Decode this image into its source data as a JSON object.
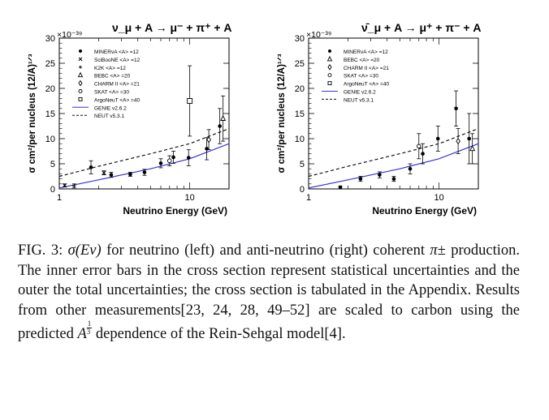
{
  "figure": {
    "exponent_label": "×10⁻³⁹",
    "ylabel": "σ cm²/per nucleus (12/A)¹ᐟ³",
    "xlabel": "Neutrino Energy (GeV)"
  },
  "chart_data": [
    {
      "type": "scatter",
      "panel": "left",
      "title": "ν_μ + A → μ⁻ + π⁺ + A",
      "xlabel": "Neutrino Energy (GeV)",
      "ylabel": "σ cm²/per nucleus (12/A)^1/3",
      "y_multiplier": "×10⁻³⁹",
      "xscale": "log",
      "xlim": [
        1,
        20
      ],
      "ylim": [
        0,
        30
      ],
      "xticks": [
        "1",
        "10"
      ],
      "yticks": [
        "0",
        "5",
        "10",
        "15",
        "20",
        "25",
        "30"
      ],
      "legend_position": "top-left",
      "legend": [
        {
          "label": "MINERvA <A> =12",
          "marker": "filled-circle"
        },
        {
          "label": "SciBooNE <A> =12",
          "marker": "cross"
        },
        {
          "label": "K2K <A> =12",
          "marker": "plus"
        },
        {
          "label": "BEBC <A> =20",
          "marker": "open-triangle"
        },
        {
          "label": "CHARM II <A> =21",
          "marker": "open-diamond"
        },
        {
          "label": "SKAT <A> =30",
          "marker": "open-circle"
        },
        {
          "label": "ArgoNeuT <A> =40",
          "marker": "open-square"
        },
        {
          "label": "GENIE v2.6.2",
          "marker": "line"
        },
        {
          "label": "NEUT v5.3.1",
          "marker": "dashed-line"
        }
      ],
      "series": [
        {
          "name": "MINERvA <A> =12",
          "marker": "filled-circle",
          "points": [
            {
              "x": 1.75,
              "y": 4.3,
              "err": 1.3
            },
            {
              "x": 2.5,
              "y": 2.8,
              "err": 0.5
            },
            {
              "x": 3.5,
              "y": 2.9,
              "err": 0.4
            },
            {
              "x": 4.5,
              "y": 3.3,
              "err": 0.6
            },
            {
              "x": 6.0,
              "y": 5.1,
              "err": 0.9
            },
            {
              "x": 7.5,
              "y": 6.3,
              "err": 1.2
            },
            {
              "x": 9.8,
              "y": 6.2,
              "err": 1.6
            },
            {
              "x": 13.5,
              "y": 8.0,
              "err": 2.2
            },
            {
              "x": 17.0,
              "y": 12.5,
              "err": 3.5
            }
          ]
        },
        {
          "name": "SciBooNE <A> =12",
          "marker": "cross",
          "points": [
            {
              "x": 1.1,
              "y": 0.7,
              "err": 0.3
            },
            {
              "x": 2.2,
              "y": 3.2,
              "err": 0.4
            }
          ]
        },
        {
          "name": "K2K <A> =12",
          "marker": "plus",
          "points": [
            {
              "x": 1.3,
              "y": 0.6,
              "err": 0.4
            }
          ]
        },
        {
          "name": "BEBC <A> =20",
          "marker": "open-triangle",
          "points": [
            {
              "x": 18.0,
              "y": 14.0,
              "err": 4.5
            }
          ]
        },
        {
          "name": "CHARM II <A> =21",
          "marker": "open-diamond",
          "points": [
            {
              "x": 14.0,
              "y": 9.8,
              "err": 2.0
            }
          ]
        },
        {
          "name": "SKAT <A> =30",
          "marker": "open-circle",
          "points": [
            {
              "x": 7.0,
              "y": 5.6,
              "err": 1.0
            }
          ]
        },
        {
          "name": "ArgoNeuT <A> =40",
          "marker": "open-square",
          "points": [
            {
              "x": 10.0,
              "y": 17.5,
              "err": 7.0
            }
          ]
        },
        {
          "name": "GENIE v2.6.2",
          "style": "line",
          "color": "#3b33d6",
          "x": [
            1,
            2,
            5,
            10,
            20
          ],
          "y": [
            0.2,
            1.8,
            4.0,
            6.0,
            9.0
          ]
        },
        {
          "name": "NEUT v5.3.1",
          "style": "dashed",
          "color": "#111111",
          "x": [
            1,
            2,
            5,
            10,
            20
          ],
          "y": [
            2.5,
            4.5,
            7.0,
            9.0,
            12.0
          ]
        }
      ]
    },
    {
      "type": "scatter",
      "panel": "right",
      "title": "ν̄_μ + A → μ⁺ + π⁻ + A",
      "xlabel": "Neutrino Energy (GeV)",
      "ylabel": "σ cm²/per nucleus (12/A)^1/3",
      "y_multiplier": "×10⁻³⁹",
      "xscale": "log",
      "xlim": [
        1,
        20
      ],
      "ylim": [
        0,
        30
      ],
      "xticks": [
        "1",
        "10"
      ],
      "yticks": [
        "0",
        "5",
        "10",
        "15",
        "20",
        "25",
        "30"
      ],
      "legend_position": "top-left",
      "legend": [
        {
          "label": "MINERvA <A> =12",
          "marker": "filled-circle"
        },
        {
          "label": "BEBC <A> =20",
          "marker": "open-triangle"
        },
        {
          "label": "CHARM II <A> =21",
          "marker": "open-diamond"
        },
        {
          "label": "SKAT <A> =30",
          "marker": "open-circle"
        },
        {
          "label": "ArgoNeuT <A> =40",
          "marker": "open-square"
        },
        {
          "label": "GENIE v2.6.2",
          "marker": "line"
        },
        {
          "label": "NEUT v5.3.1",
          "marker": "dashed-line"
        }
      ],
      "series": [
        {
          "name": "MINERvA <A> =12",
          "marker": "filled-circle",
          "points": [
            {
              "x": 1.75,
              "y": 0.3,
              "err": 0.3
            },
            {
              "x": 2.5,
              "y": 2.0,
              "err": 0.5
            },
            {
              "x": 3.5,
              "y": 2.8,
              "err": 0.6
            },
            {
              "x": 4.5,
              "y": 2.0,
              "err": 0.5
            },
            {
              "x": 6.0,
              "y": 4.0,
              "err": 1.0
            },
            {
              "x": 7.5,
              "y": 7.0,
              "err": 2.0
            },
            {
              "x": 9.8,
              "y": 10.0,
              "err": 2.5
            },
            {
              "x": 13.5,
              "y": 16.0,
              "err": 3.5
            },
            {
              "x": 17.0,
              "y": 10.0,
              "err": 5.0
            }
          ]
        },
        {
          "name": "BEBC <A> =20",
          "marker": "open-triangle",
          "points": [
            {
              "x": 18.0,
              "y": 8.0,
              "err": 3.0
            }
          ]
        },
        {
          "name": "CHARM II <A> =21",
          "marker": "open-diamond",
          "points": [
            {
              "x": 14.0,
              "y": 9.5,
              "err": 2.5
            }
          ]
        },
        {
          "name": "SKAT <A> =30",
          "marker": "open-circle",
          "points": [
            {
              "x": 7.0,
              "y": 8.5,
              "err": 2.5
            }
          ]
        },
        {
          "name": "GENIE v2.6.2",
          "style": "line",
          "color": "#3b33d6",
          "x": [
            1,
            2,
            5,
            10,
            20
          ],
          "y": [
            0.2,
            1.8,
            4.0,
            6.0,
            9.0
          ]
        },
        {
          "name": "NEUT v5.3.1",
          "style": "dashed",
          "color": "#111111",
          "x": [
            1,
            2,
            5,
            10,
            20
          ],
          "y": [
            2.5,
            4.5,
            7.0,
            9.0,
            12.0
          ]
        }
      ]
    }
  ],
  "caption": {
    "label": "FIG. 3:",
    "sigma_expr": "σ(Eν)",
    "part1": "for neutrino (left) and anti-neutrino (right) coherent",
    "pi_expr": "π±",
    "part2": "production.  The inner error bars in the cross section represent statistical uncertainties and the outer the total uncertainties; the cross section is tabulated in the Appendix.  Results from other measurements[23, 24, 28, 49–52] are scaled to carbon using the predicted",
    "a_expr": "A",
    "frac_num": "1",
    "frac_den": "3",
    "part3": "dependence of the Rein-Sehgal model[4]."
  }
}
